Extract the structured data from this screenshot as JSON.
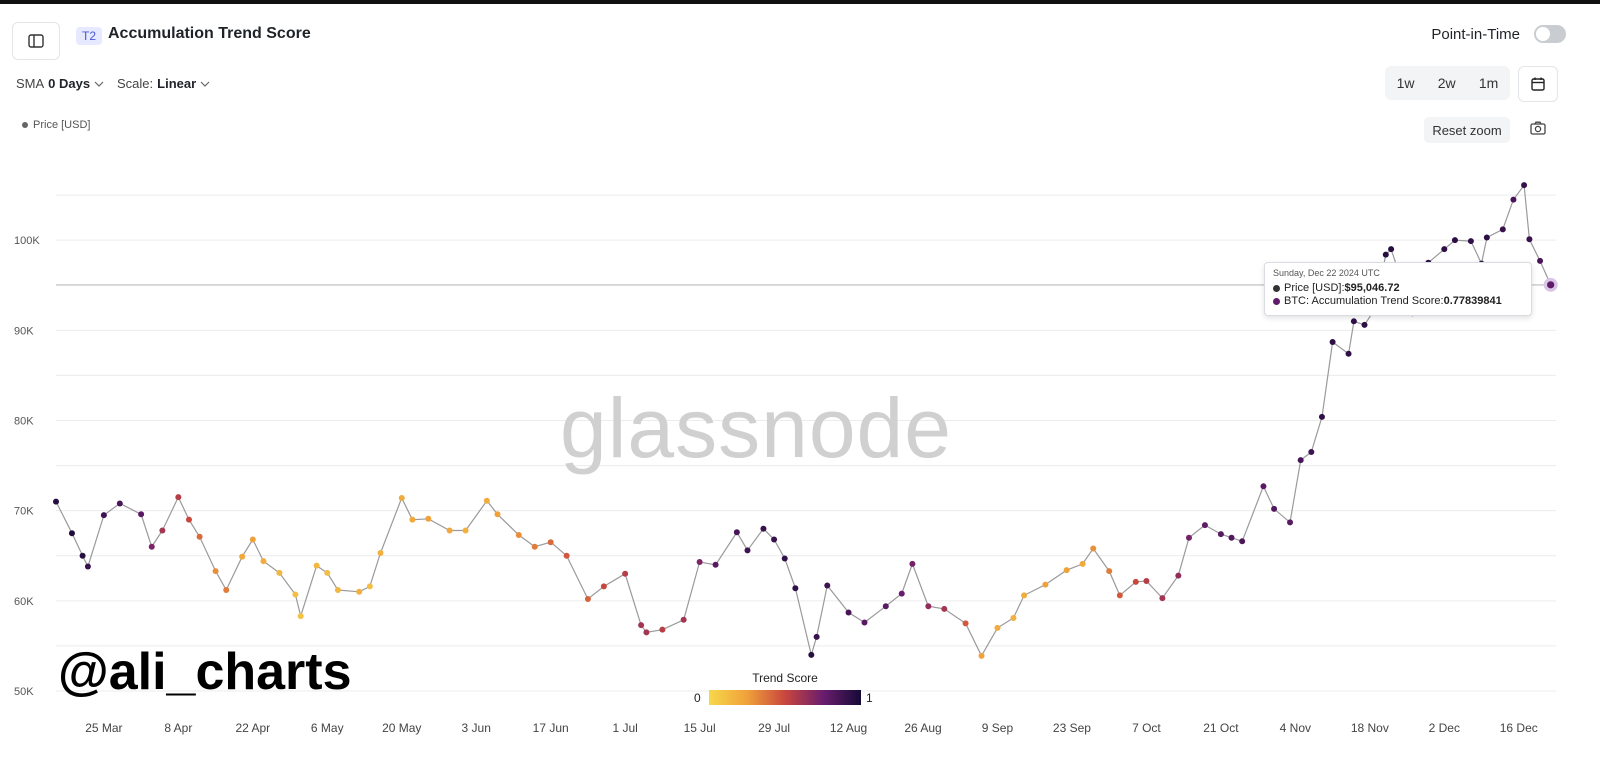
{
  "header": {
    "tag": "T2",
    "title": "Accumulation Trend Score",
    "point_in_time_label": "Point-in-Time",
    "point_in_time_enabled": false
  },
  "controls": {
    "sma_label": "SMA",
    "sma_value": "0 Days",
    "scale_label": "Scale:",
    "scale_value": "Linear",
    "ranges": [
      "1w",
      "2w",
      "1m"
    ],
    "reset_zoom": "Reset zoom"
  },
  "legend": {
    "price_label": "Price [USD]"
  },
  "tooltip": {
    "date": "Sunday, Dec 22 2024 UTC",
    "price_label": "Price [USD]: ",
    "price_value": "$95,046.72",
    "score_label": "BTC: Accumulation Trend Score: ",
    "score_value": "0.77839841"
  },
  "watermark": "glassnode",
  "author": "@ali_charts",
  "colorbar": {
    "title": "Trend Score",
    "min_label": "0",
    "max_label": "1"
  },
  "colors": {
    "line": "#9a9a9a",
    "grid": "#ececec",
    "score_low": "#f6d84a",
    "score_mid": "#c9463d",
    "score_high": "#150a36"
  },
  "chart_data": {
    "type": "scatter",
    "title": "Accumulation Trend Score",
    "series_name": "Price [USD]",
    "color_variable": "Trend Score",
    "y_ticks": [
      "50K",
      "60K",
      "70K",
      "80K",
      "90K",
      "100K"
    ],
    "y_tick_values": [
      50000,
      60000,
      70000,
      80000,
      90000,
      100000
    ],
    "ylim": [
      49000,
      110000
    ],
    "x_ticks": [
      "25 Mar",
      "8 Apr",
      "22 Apr",
      "6 May",
      "20 May",
      "3 Jun",
      "17 Jun",
      "1 Jul",
      "15 Jul",
      "29 Jul",
      "12 Aug",
      "26 Aug",
      "9 Sep",
      "23 Sep",
      "7 Oct",
      "21 Oct",
      "4 Nov",
      "18 Nov",
      "2 Dec",
      "16 Dec"
    ],
    "x_tick_dates": [
      "2024-03-25",
      "2024-04-08",
      "2024-04-22",
      "2024-05-06",
      "2024-05-20",
      "2024-06-03",
      "2024-06-17",
      "2024-07-01",
      "2024-07-15",
      "2024-07-29",
      "2024-08-12",
      "2024-08-26",
      "2024-09-09",
      "2024-09-23",
      "2024-10-07",
      "2024-10-21",
      "2024-11-04",
      "2024-11-18",
      "2024-12-02",
      "2024-12-16"
    ],
    "xlim": [
      "2024-03-16",
      "2024-12-23"
    ],
    "points": [
      [
        "2024-03-16",
        71000,
        0.95
      ],
      [
        "2024-03-19",
        67500,
        0.97
      ],
      [
        "2024-03-21",
        65000,
        0.95
      ],
      [
        "2024-03-22",
        63800,
        0.9
      ],
      [
        "2024-03-25",
        69500,
        0.88
      ],
      [
        "2024-03-28",
        70800,
        0.85
      ],
      [
        "2024-04-01",
        69600,
        0.8
      ],
      [
        "2024-04-03",
        66000,
        0.7
      ],
      [
        "2024-04-05",
        67800,
        0.6
      ],
      [
        "2024-04-08",
        71500,
        0.55
      ],
      [
        "2024-04-10",
        69000,
        0.5
      ],
      [
        "2024-04-12",
        67100,
        0.4
      ],
      [
        "2024-04-15",
        63300,
        0.3
      ],
      [
        "2024-04-17",
        61200,
        0.35
      ],
      [
        "2024-04-20",
        64900,
        0.22
      ],
      [
        "2024-04-22",
        66800,
        0.25
      ],
      [
        "2024-04-24",
        64400,
        0.2
      ],
      [
        "2024-04-27",
        63100,
        0.15
      ],
      [
        "2024-04-30",
        60700,
        0.12
      ],
      [
        "2024-05-01",
        58300,
        0.1
      ],
      [
        "2024-05-04",
        63900,
        0.15
      ],
      [
        "2024-05-06",
        63100,
        0.12
      ],
      [
        "2024-05-08",
        61200,
        0.15
      ],
      [
        "2024-05-12",
        61000,
        0.18
      ],
      [
        "2024-05-14",
        61600,
        0.12
      ],
      [
        "2024-05-16",
        65300,
        0.18
      ],
      [
        "2024-05-20",
        71400,
        0.2
      ],
      [
        "2024-05-22",
        69000,
        0.22
      ],
      [
        "2024-05-25",
        69100,
        0.25
      ],
      [
        "2024-05-29",
        67800,
        0.22
      ],
      [
        "2024-06-01",
        67800,
        0.18
      ],
      [
        "2024-06-05",
        71100,
        0.2
      ],
      [
        "2024-06-07",
        69600,
        0.25
      ],
      [
        "2024-06-11",
        67300,
        0.3
      ],
      [
        "2024-06-14",
        66000,
        0.35
      ],
      [
        "2024-06-17",
        66500,
        0.4
      ],
      [
        "2024-06-20",
        65000,
        0.45
      ],
      [
        "2024-06-24",
        60200,
        0.42
      ],
      [
        "2024-06-27",
        61600,
        0.5
      ],
      [
        "2024-07-01",
        63000,
        0.55
      ],
      [
        "2024-07-04",
        57300,
        0.6
      ],
      [
        "2024-07-05",
        56500,
        0.6
      ],
      [
        "2024-07-08",
        56800,
        0.55
      ],
      [
        "2024-07-12",
        57900,
        0.6
      ],
      [
        "2024-07-15",
        64300,
        0.7
      ],
      [
        "2024-07-18",
        64000,
        0.8
      ],
      [
        "2024-07-22",
        67600,
        0.85
      ],
      [
        "2024-07-24",
        65600,
        0.88
      ],
      [
        "2024-07-27",
        68000,
        0.9
      ],
      [
        "2024-07-29",
        66800,
        0.9
      ],
      [
        "2024-07-31",
        64700,
        0.92
      ],
      [
        "2024-08-02",
        61400,
        0.92
      ],
      [
        "2024-08-05",
        54000,
        0.95
      ],
      [
        "2024-08-06",
        56000,
        0.9
      ],
      [
        "2024-08-08",
        61700,
        0.88
      ],
      [
        "2024-08-12",
        58700,
        0.85
      ],
      [
        "2024-08-15",
        57600,
        0.8
      ],
      [
        "2024-08-19",
        59400,
        0.8
      ],
      [
        "2024-08-22",
        60800,
        0.75
      ],
      [
        "2024-08-24",
        64100,
        0.72
      ],
      [
        "2024-08-27",
        59400,
        0.65
      ],
      [
        "2024-08-30",
        59100,
        0.6
      ],
      [
        "2024-09-03",
        57500,
        0.45
      ],
      [
        "2024-09-06",
        53900,
        0.25
      ],
      [
        "2024-09-09",
        57000,
        0.2
      ],
      [
        "2024-09-12",
        58100,
        0.18
      ],
      [
        "2024-09-14",
        60600,
        0.2
      ],
      [
        "2024-09-18",
        61800,
        0.25
      ],
      [
        "2024-09-22",
        63400,
        0.25
      ],
      [
        "2024-09-25",
        64100,
        0.22
      ],
      [
        "2024-09-27",
        65800,
        0.3
      ],
      [
        "2024-09-30",
        63300,
        0.35
      ],
      [
        "2024-10-02",
        60600,
        0.45
      ],
      [
        "2024-10-05",
        62100,
        0.5
      ],
      [
        "2024-10-07",
        62200,
        0.55
      ],
      [
        "2024-10-10",
        60300,
        0.6
      ],
      [
        "2024-10-13",
        62800,
        0.65
      ],
      [
        "2024-10-15",
        67000,
        0.72
      ],
      [
        "2024-10-18",
        68400,
        0.78
      ],
      [
        "2024-10-21",
        67400,
        0.8
      ],
      [
        "2024-10-23",
        67000,
        0.82
      ],
      [
        "2024-10-25",
        66600,
        0.84
      ],
      [
        "2024-10-29",
        72700,
        0.8
      ],
      [
        "2024-10-31",
        70200,
        0.82
      ],
      [
        "2024-11-03",
        68700,
        0.8
      ],
      [
        "2024-11-05",
        75600,
        0.85
      ],
      [
        "2024-11-07",
        76500,
        0.88
      ],
      [
        "2024-11-09",
        80400,
        0.92
      ],
      [
        "2024-11-11",
        88700,
        0.93
      ],
      [
        "2024-11-14",
        87400,
        0.92
      ],
      [
        "2024-11-15",
        91000,
        0.92
      ],
      [
        "2024-11-17",
        90600,
        0.93
      ],
      [
        "2024-11-19",
        92400,
        0.92
      ],
      [
        "2024-11-21",
        98400,
        0.95
      ],
      [
        "2024-11-22",
        99000,
        0.95
      ],
      [
        "2024-11-26",
        91900,
        0.9
      ],
      [
        "2024-11-29",
        97500,
        0.92
      ],
      [
        "2024-12-02",
        99000,
        0.93
      ],
      [
        "2024-12-04",
        100000,
        0.93
      ],
      [
        "2024-12-07",
        99900,
        0.92
      ],
      [
        "2024-12-09",
        97400,
        0.9
      ],
      [
        "2024-12-10",
        100300,
        0.93
      ],
      [
        "2024-12-13",
        101200,
        0.9
      ],
      [
        "2024-12-15",
        104500,
        0.85
      ],
      [
        "2024-12-17",
        106100,
        0.9
      ],
      [
        "2024-12-18",
        100100,
        0.9
      ],
      [
        "2024-12-20",
        97700,
        0.85
      ],
      [
        "2024-12-22",
        95046.72,
        0.77839841
      ]
    ]
  }
}
